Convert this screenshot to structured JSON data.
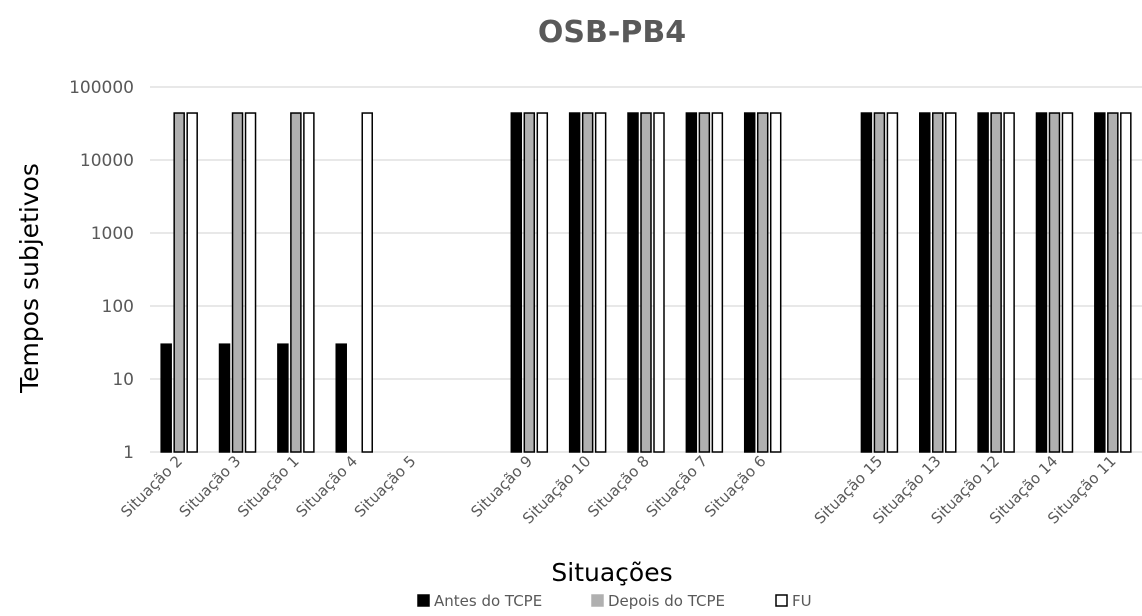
{
  "chart_data": {
    "type": "bar",
    "title": "OSB-PB4",
    "xlabel": "Situações",
    "ylabel": "Tempos subjetivos",
    "yscale": "log",
    "ylim": [
      1,
      100000
    ],
    "yticks": [
      "1",
      "10",
      "100",
      "1000",
      "10000",
      "100000"
    ],
    "grid": true,
    "legend_position": "bottom",
    "categories": [
      "Situação 2",
      "Situação 3",
      "Situação 1",
      "Situação 4",
      "Situação 5",
      "",
      "Situação 9",
      "Situação 10",
      "Situação 8",
      "Situação 7",
      "Situação 6",
      "",
      "Situação 15",
      "Situação 13",
      "Situação 12",
      "Situação 14",
      "Situação 11"
    ],
    "series": [
      {
        "name": "Antes do TCPE",
        "color": "#000000",
        "values": [
          30,
          30,
          30,
          30,
          null,
          null,
          44000,
          44000,
          44000,
          44000,
          44000,
          null,
          44000,
          44000,
          44000,
          44000,
          44000
        ]
      },
      {
        "name": "Depois do TCPE",
        "color": "#b0b0b0",
        "values": [
          44000,
          44000,
          44000,
          null,
          null,
          null,
          44000,
          44000,
          44000,
          44000,
          44000,
          null,
          44000,
          44000,
          44000,
          44000,
          44000
        ]
      },
      {
        "name": "FU",
        "color": "#ffffff",
        "values": [
          44000,
          44000,
          44000,
          44000,
          null,
          null,
          44000,
          44000,
          44000,
          44000,
          44000,
          null,
          44000,
          44000,
          44000,
          44000,
          44000
        ]
      }
    ]
  }
}
